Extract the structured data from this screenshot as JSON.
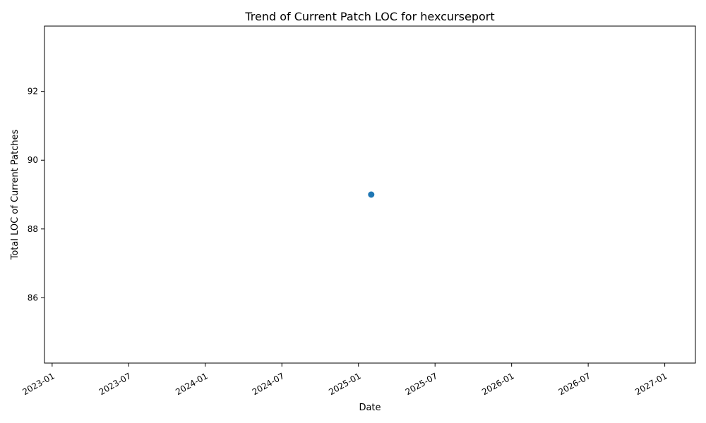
{
  "chart_data": {
    "type": "scatter",
    "title": "Trend of Current Patch LOC for hexcurseport",
    "xlabel": "Date",
    "ylabel": "Total LOC of Current Patches",
    "x_ticks": [
      "2023-01",
      "2023-07",
      "2024-01",
      "2024-07",
      "2025-01",
      "2025-07",
      "2026-01",
      "2026-07",
      "2027-01"
    ],
    "x_tick_months": [
      0,
      6,
      12,
      18,
      24,
      30,
      36,
      42,
      48
    ],
    "xlim_months": [
      -0.6,
      50.4
    ],
    "y_ticks": [
      86,
      88,
      90,
      92
    ],
    "ylim": [
      84.1,
      93.9
    ],
    "points": [
      {
        "x": "2025-02",
        "x_month": 25.0,
        "y": 89
      }
    ],
    "point_color": "#1f77b4",
    "grid": false
  }
}
